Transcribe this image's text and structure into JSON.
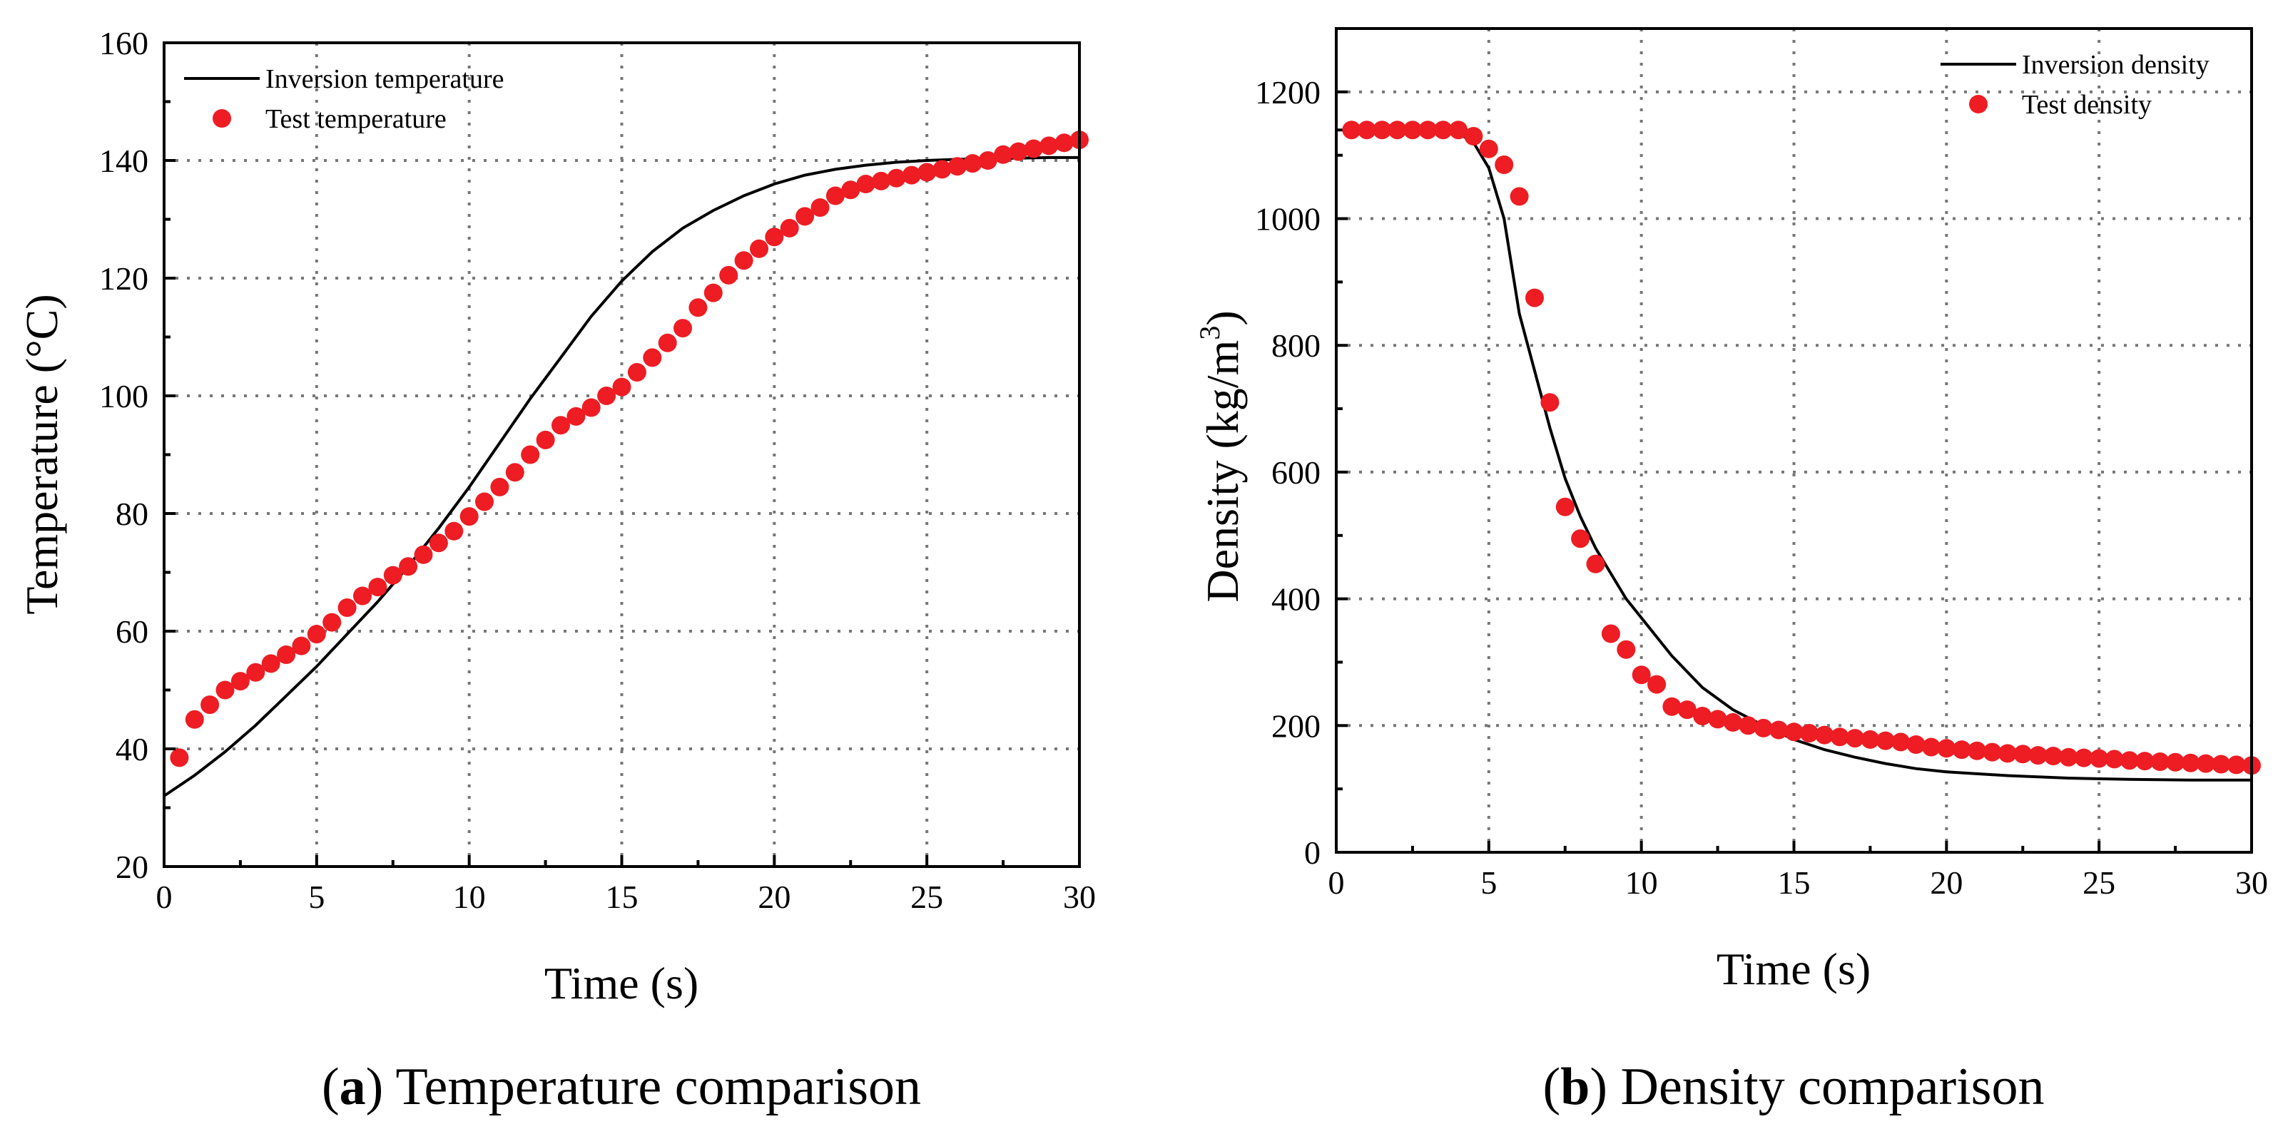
{
  "chart_data": [
    {
      "type": "line",
      "xlabel": "Time (s)",
      "ylabel": "Temperature (°C)",
      "xlim": [
        0,
        30
      ],
      "ylim": [
        20,
        160
      ],
      "xticks": [
        0,
        5,
        10,
        15,
        20,
        25,
        30
      ],
      "yticks": [
        20,
        40,
        60,
        80,
        100,
        120,
        140,
        160
      ],
      "grid": true,
      "legend_position": "top-left",
      "caption": {
        "letter": "a",
        "text": "Temperature comparison"
      },
      "series": [
        {
          "name": "Inversion temperature",
          "style": "line",
          "color": "#000000",
          "x": [
            0,
            1,
            2,
            3,
            4,
            5,
            6,
            7,
            8,
            9,
            10,
            11,
            12,
            13,
            14,
            15,
            16,
            17,
            18,
            19,
            20,
            21,
            22,
            23,
            24,
            25,
            26,
            27,
            28,
            29,
            30
          ],
          "y": [
            32,
            35.5,
            39.5,
            44,
            49,
            54,
            59.5,
            65,
            71,
            77.5,
            84.5,
            92,
            99.5,
            106.5,
            113.5,
            119.5,
            124.5,
            128.5,
            131.5,
            134,
            136,
            137.5,
            138.5,
            139.2,
            139.7,
            140,
            140.2,
            140.3,
            140.4,
            140.5,
            140.5
          ]
        },
        {
          "name": "Test temperature",
          "style": "scatter",
          "color": "#ee1c23",
          "x": [
            0.5,
            1,
            1.5,
            2,
            2.5,
            3,
            3.5,
            4,
            4.5,
            5,
            5.5,
            6,
            6.5,
            7,
            7.5,
            8,
            8.5,
            9,
            9.5,
            10,
            10.5,
            11,
            11.5,
            12,
            12.5,
            13,
            13.5,
            14,
            14.5,
            15,
            15.5,
            16,
            16.5,
            17,
            17.5,
            18,
            18.5,
            19,
            19.5,
            20,
            20.5,
            21,
            21.5,
            22,
            22.5,
            23,
            23.5,
            24,
            24.5,
            25,
            25.5,
            26,
            26.5,
            27,
            27.5,
            28,
            28.5,
            29,
            29.5,
            30
          ],
          "y": [
            38.5,
            45,
            47.5,
            50,
            51.5,
            53,
            54.5,
            56,
            57.5,
            59.5,
            61.5,
            64,
            66,
            67.5,
            69.5,
            71,
            73,
            75,
            77,
            79.5,
            82,
            84.5,
            87,
            90,
            92.5,
            95,
            96.5,
            98,
            100,
            101.5,
            104,
            106.5,
            109,
            111.5,
            115,
            117.5,
            120.5,
            123,
            125,
            127,
            128.5,
            130.5,
            132,
            134,
            135,
            136,
            136.5,
            137,
            137.5,
            138,
            138.5,
            139,
            139.5,
            140,
            141,
            141.5,
            142,
            142.5,
            143,
            143.5
          ]
        }
      ]
    },
    {
      "type": "line",
      "xlabel": "Time (s)",
      "ylabel_main": "Density (kg/m",
      "ylabel_sup": "3",
      "ylabel_end": ")",
      "xlim": [
        0,
        30
      ],
      "ylim": [
        0,
        1300
      ],
      "xticks": [
        0,
        5,
        10,
        15,
        20,
        25,
        30
      ],
      "yticks": [
        0,
        200,
        400,
        600,
        800,
        1000,
        1200
      ],
      "grid": true,
      "legend_position": "top-right",
      "caption": {
        "letter": "b",
        "text": "Density comparison"
      },
      "series": [
        {
          "name": "Inversion density",
          "style": "line",
          "color": "#000000",
          "x": [
            0,
            1,
            2,
            3,
            4,
            4.5,
            5,
            5.5,
            6,
            6.5,
            7,
            7.5,
            8,
            8.5,
            9,
            9.5,
            10,
            11,
            12,
            13,
            14,
            15,
            16,
            17,
            18,
            19,
            20,
            22,
            24,
            26,
            28,
            30
          ],
          "y": [
            1140,
            1140,
            1140,
            1139,
            1135,
            1120,
            1080,
            1000,
            850,
            760,
            670,
            590,
            530,
            480,
            440,
            400,
            370,
            310,
            260,
            225,
            200,
            178,
            162,
            150,
            140,
            132,
            127,
            121,
            117,
            115,
            114,
            114
          ]
        },
        {
          "name": "Test density",
          "style": "scatter",
          "color": "#ee1c23",
          "x": [
            0.5,
            1,
            1.5,
            2,
            2.5,
            3,
            3.5,
            4,
            4.5,
            5,
            5.5,
            6,
            6.5,
            7,
            7.5,
            8,
            8.5,
            9,
            9.5,
            10,
            10.5,
            11,
            11.5,
            12,
            12.5,
            13,
            13.5,
            14,
            14.5,
            15,
            15.5,
            16,
            16.5,
            17,
            17.5,
            18,
            18.5,
            19,
            19.5,
            20,
            20.5,
            21,
            21.5,
            22,
            22.5,
            23,
            23.5,
            24,
            24.5,
            25,
            25.5,
            26,
            26.5,
            27,
            27.5,
            28,
            28.5,
            29,
            29.5,
            30
          ],
          "y": [
            1140,
            1140,
            1140,
            1140,
            1140,
            1140,
            1140,
            1140,
            1130,
            1110,
            1085,
            1035,
            875,
            710,
            545,
            495,
            455,
            345,
            320,
            280,
            265,
            230,
            225,
            215,
            210,
            205,
            200,
            196,
            193,
            190,
            188,
            185,
            182,
            180,
            178,
            176,
            174,
            170,
            166,
            164,
            162,
            160,
            158,
            156,
            155,
            153,
            152,
            150,
            149,
            148,
            147,
            145,
            144,
            143,
            142,
            141,
            140,
            139,
            138,
            137
          ]
        }
      ]
    }
  ]
}
